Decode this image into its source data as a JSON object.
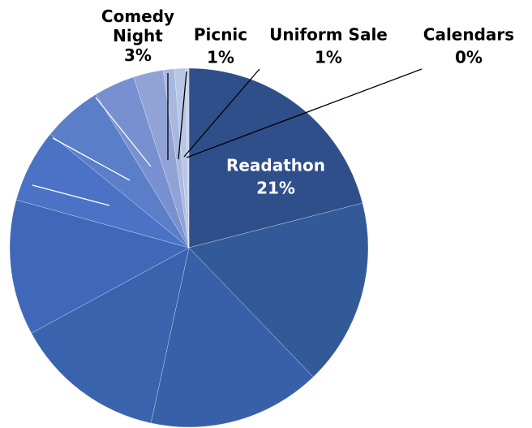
{
  "chart_data": {
    "type": "pie",
    "categories": [
      "Readathon",
      null,
      null,
      null,
      null,
      null,
      null,
      null,
      "Comedy Night",
      "Picnic",
      "Uniform Sale",
      "Calendars"
    ],
    "values": [
      21,
      16.8,
      15.6,
      13.7,
      12.2,
      6.6,
      5.4,
      3.7,
      2.7,
      1,
      1,
      0.3
    ],
    "value_labels": [
      "21%",
      null,
      null,
      null,
      null,
      null,
      null,
      null,
      "3%",
      "1%",
      "1%",
      "0%"
    ],
    "colors": [
      "#2e4f8a",
      "#335a98",
      "#3760a8",
      "#3a63ae",
      "#3f68b8",
      "#4b72c4",
      "#5b7ec8",
      "#7890d0",
      "#91a3d6",
      "#a9b8e0",
      "#b9c6e6",
      "#c8d2ec"
    ]
  }
}
